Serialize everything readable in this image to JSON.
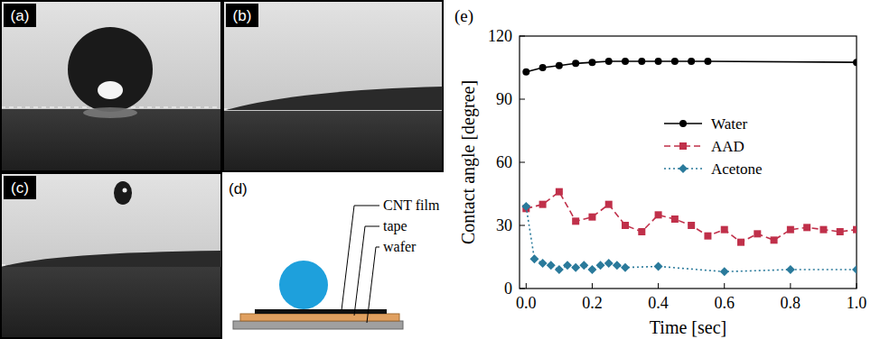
{
  "panels": [
    {
      "label": "(a)"
    },
    {
      "label": "(b)"
    },
    {
      "label": "(c)"
    },
    {
      "label": "(d)",
      "texts": [
        "CNT film",
        "tape",
        "wafer"
      ]
    }
  ],
  "chart_data": {
    "type": "line",
    "title": "(e)",
    "x_label": "Time [sec]",
    "y_label": "Contact angle [degree]",
    "xlim": [
      -0.02,
      1.0
    ],
    "ylim": [
      0,
      120
    ],
    "xticks": [
      {
        "value": 0,
        "label": "0.0"
      },
      0.2,
      0.4,
      0.6,
      0.8,
      {
        "value": 1,
        "label": "1.0"
      }
    ],
    "yticks": [
      0,
      30,
      60,
      90,
      120
    ],
    "grid": false,
    "legend": "right",
    "series": [
      {
        "name": "Water",
        "color": "#000000",
        "marker": "circle",
        "line_style": "solid",
        "x": [
          0,
          0.05,
          0.1,
          0.15,
          0.2,
          0.25,
          0.3,
          0.35,
          0.4,
          0.45,
          0.5,
          0.55,
          1.0
        ],
        "values": [
          103,
          105,
          106,
          107,
          107.5,
          108,
          108,
          108,
          108,
          108,
          108,
          108,
          107.5
        ]
      },
      {
        "name": "AAD",
        "color": "#c0304a",
        "marker": "square",
        "line_style": "dashed",
        "x": [
          0,
          0.05,
          0.1,
          0.15,
          0.2,
          0.25,
          0.3,
          0.35,
          0.4,
          0.45,
          0.5,
          0.55,
          0.6,
          0.65,
          0.7,
          0.75,
          0.8,
          0.85,
          0.9,
          0.95,
          1.0
        ],
        "values": [
          38,
          40,
          46,
          32,
          34,
          40,
          30,
          27,
          35,
          33,
          30,
          25,
          28,
          22,
          26,
          23,
          28,
          29,
          28,
          27,
          28
        ]
      },
      {
        "name": "Acetone",
        "color": "#2a7a9b",
        "marker": "diamond",
        "line_style": "dotted",
        "x": [
          0,
          0.025,
          0.05,
          0.075,
          0.1,
          0.125,
          0.15,
          0.175,
          0.2,
          0.225,
          0.25,
          0.275,
          0.3,
          0.4,
          0.6,
          0.8,
          1.0
        ],
        "values": [
          39,
          14,
          12,
          11,
          9,
          11,
          10,
          11,
          9,
          11,
          12,
          11,
          10,
          10.5,
          8,
          9,
          9
        ]
      }
    ]
  }
}
